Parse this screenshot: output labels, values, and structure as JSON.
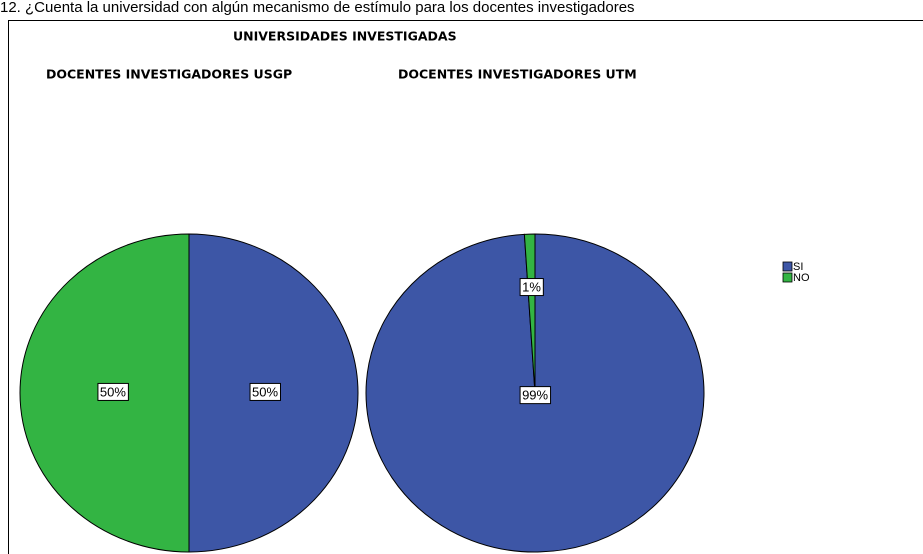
{
  "question": "12.   ¿Cuenta la universidad con algún mecanismo de estímulo para los docentes investigadores",
  "title": "UNIVERSIDADES INVESTIGADAS",
  "chart_data": [
    {
      "type": "pie",
      "title": "DOCENTES INVESTIGADORES USGP",
      "categories": [
        "SI",
        "NO"
      ],
      "values": [
        50,
        50
      ],
      "value_labels": [
        "50%",
        "50%"
      ],
      "colors": [
        "#3d56a6",
        "#33b443"
      ]
    },
    {
      "type": "pie",
      "title": "DOCENTES INVESTIGADORES UTM",
      "categories": [
        "SI",
        "NO"
      ],
      "values": [
        99,
        1
      ],
      "value_labels": [
        "99%",
        "1%"
      ],
      "colors": [
        "#3d56a6",
        "#33b443"
      ]
    }
  ]
}
